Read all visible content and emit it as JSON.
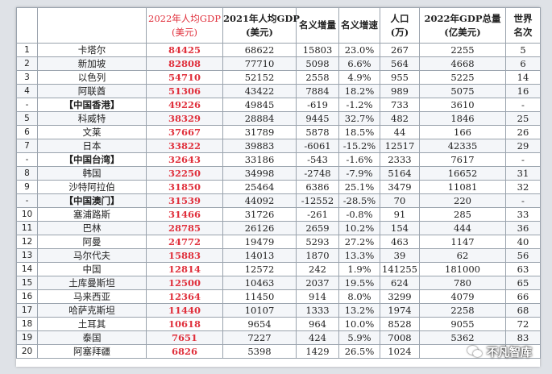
{
  "headers": {
    "rank": "",
    "country": "",
    "gdp2022_line1": "2022年人均GDP",
    "gdp2022_line2": "(美元)",
    "gdp2021_line1": "2021年人均GDP",
    "gdp2021_line2": "(美元)",
    "nominal_increase": "名义增量",
    "nominal_growth": "名义增速",
    "population_line1": "人口",
    "population_line2": "(万)",
    "total_gdp_line1": "2022年GDP总量",
    "total_gdp_line2": "(亿美元)",
    "world_rank_line1": "世界",
    "world_rank_line2": "名次"
  },
  "rows": [
    {
      "rank": "1",
      "name": "卡塔尔",
      "gdp2022": "84425",
      "gdp2021": "68622",
      "inc": "15803",
      "growth": "23.0%",
      "pop": "267",
      "total": "2255",
      "world": "5"
    },
    {
      "rank": "2",
      "name": "新加坡",
      "gdp2022": "82808",
      "gdp2021": "77710",
      "inc": "5098",
      "growth": "6.6%",
      "pop": "564",
      "total": "4668",
      "world": "6"
    },
    {
      "rank": "3",
      "name": "以色列",
      "gdp2022": "54710",
      "gdp2021": "52152",
      "inc": "2558",
      "growth": "4.9%",
      "pop": "955",
      "total": "5225",
      "world": "14"
    },
    {
      "rank": "4",
      "name": "阿联酋",
      "gdp2022": "51306",
      "gdp2021": "43422",
      "inc": "7884",
      "growth": "18.2%",
      "pop": "989",
      "total": "5075",
      "world": "16"
    },
    {
      "rank": "-",
      "name": "【中国香港】",
      "gdp2022": "49226",
      "gdp2021": "49845",
      "inc": "-619",
      "growth": "-1.2%",
      "pop": "733",
      "total": "3610",
      "world": "-"
    },
    {
      "rank": "5",
      "name": "科威特",
      "gdp2022": "38329",
      "gdp2021": "28884",
      "inc": "9445",
      "growth": "32.7%",
      "pop": "482",
      "total": "1846",
      "world": "25"
    },
    {
      "rank": "6",
      "name": "文莱",
      "gdp2022": "37667",
      "gdp2021": "31789",
      "inc": "5878",
      "growth": "18.5%",
      "pop": "44",
      "total": "166",
      "world": "26"
    },
    {
      "rank": "7",
      "name": "日本",
      "gdp2022": "33822",
      "gdp2021": "39883",
      "inc": "-6061",
      "growth": "-15.2%",
      "pop": "12517",
      "total": "42335",
      "world": "29"
    },
    {
      "rank": "-",
      "name": "【中国台湾】",
      "gdp2022": "32643",
      "gdp2021": "33186",
      "inc": "-543",
      "growth": "-1.6%",
      "pop": "2333",
      "total": "7617",
      "world": "-"
    },
    {
      "rank": "8",
      "name": "韩国",
      "gdp2022": "32250",
      "gdp2021": "34998",
      "inc": "-2748",
      "growth": "-7.9%",
      "pop": "5164",
      "total": "16652",
      "world": "31"
    },
    {
      "rank": "9",
      "name": "沙特阿拉伯",
      "gdp2022": "31850",
      "gdp2021": "25464",
      "inc": "6386",
      "growth": "25.1%",
      "pop": "3479",
      "total": "11081",
      "world": "32"
    },
    {
      "rank": "-",
      "name": "【中国澳门】",
      "gdp2022": "31539",
      "gdp2021": "44092",
      "inc": "-12552",
      "growth": "-28.5%",
      "pop": "70",
      "total": "220",
      "world": "-"
    },
    {
      "rank": "10",
      "name": "塞浦路斯",
      "gdp2022": "31466",
      "gdp2021": "31726",
      "inc": "-261",
      "growth": "-0.8%",
      "pop": "91",
      "total": "285",
      "world": "33"
    },
    {
      "rank": "11",
      "name": "巴林",
      "gdp2022": "28785",
      "gdp2021": "26126",
      "inc": "2659",
      "growth": "10.2%",
      "pop": "154",
      "total": "444",
      "world": "36"
    },
    {
      "rank": "12",
      "name": "阿曼",
      "gdp2022": "24772",
      "gdp2021": "19479",
      "inc": "5293",
      "growth": "27.2%",
      "pop": "463",
      "total": "1147",
      "world": "40"
    },
    {
      "rank": "13",
      "name": "马尔代夫",
      "gdp2022": "15883",
      "gdp2021": "14013",
      "inc": "1870",
      "growth": "13.3%",
      "pop": "39",
      "total": "62",
      "world": "56"
    },
    {
      "rank": "14",
      "name": "中国",
      "gdp2022": "12814",
      "gdp2021": "12572",
      "inc": "242",
      "growth": "1.9%",
      "pop": "141255",
      "total": "181000",
      "world": "63"
    },
    {
      "rank": "15",
      "name": "土库曼斯坦",
      "gdp2022": "12500",
      "gdp2021": "10463",
      "inc": "2037",
      "growth": "19.5%",
      "pop": "624",
      "total": "780",
      "world": "65"
    },
    {
      "rank": "16",
      "name": "马来西亚",
      "gdp2022": "12364",
      "gdp2021": "11450",
      "inc": "914",
      "growth": "8.0%",
      "pop": "3299",
      "total": "4079",
      "world": "66"
    },
    {
      "rank": "17",
      "name": "哈萨克斯坦",
      "gdp2022": "11440",
      "gdp2021": "10107",
      "inc": "1333",
      "growth": "13.2%",
      "pop": "1974",
      "total": "2258",
      "world": "68"
    },
    {
      "rank": "18",
      "name": "土耳其",
      "gdp2022": "10618",
      "gdp2021": "9654",
      "inc": "964",
      "growth": "10.0%",
      "pop": "8528",
      "total": "9055",
      "world": "72"
    },
    {
      "rank": "19",
      "name": "泰国",
      "gdp2022": "7651",
      "gdp2021": "7227",
      "inc": "424",
      "growth": "5.9%",
      "pop": "7008",
      "total": "5362",
      "world": "83"
    },
    {
      "rank": "20",
      "name": "阿塞拜疆",
      "gdp2022": "6826",
      "gdp2021": "5398",
      "inc": "1429",
      "growth": "26.5%",
      "pop": "1024",
      "total": "",
      "world": ""
    }
  ],
  "watermark": "不凡智库"
}
